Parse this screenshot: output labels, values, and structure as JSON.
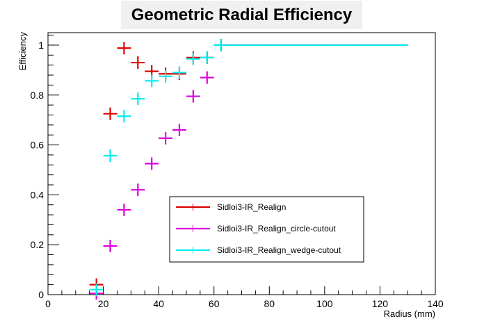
{
  "chart_data": {
    "type": "scatter",
    "title": "Geometric Radial Efficiency",
    "xlabel": "Radius (mm)",
    "ylabel": "Efficiency",
    "xlim": [
      0,
      140
    ],
    "ylim": [
      0,
      1.05
    ],
    "xticks": [
      0,
      20,
      40,
      60,
      80,
      100,
      120,
      140
    ],
    "yticks": [
      0,
      0.2,
      0.4,
      0.6,
      0.8,
      1
    ],
    "legend_position": "lower-center",
    "series": [
      {
        "name": "Sidloi3-IR_Realign",
        "color": "#dd0000",
        "points": [
          {
            "x": 17.5,
            "y": 0.04,
            "xerr": 2.5
          },
          {
            "x": 22.5,
            "y": 0.725,
            "xerr": 2.5
          },
          {
            "x": 27.5,
            "y": 0.988,
            "xerr": 2.5
          },
          {
            "x": 32.5,
            "y": 0.93,
            "xerr": 2.5
          },
          {
            "x": 37.5,
            "y": 0.895,
            "xerr": 2.5
          },
          {
            "x": 42.5,
            "y": 0.885,
            "xerr": 2.5
          },
          {
            "x": 47.5,
            "y": 0.885,
            "xerr": 2.5
          },
          {
            "x": 52.5,
            "y": 0.95,
            "xerr": 2.5
          },
          {
            "x": 57.5,
            "y": 0.95,
            "xerr": 2.5
          },
          {
            "x": 62.5,
            "y": 1.0,
            "xerr": 2.5
          },
          {
            "x": 72.5,
            "y": 1.0,
            "xerr": 7.5
          },
          {
            "x": 90,
            "y": 1.0,
            "xerr": 10
          },
          {
            "x": 105,
            "y": 1.0,
            "xerr": 5
          },
          {
            "x": 120,
            "y": 1.0,
            "xerr": 10
          }
        ]
      },
      {
        "name": "Sidloi3-IR_Realign_circle-cutout",
        "color": "#dd00dd",
        "points": [
          {
            "x": 17.5,
            "y": 0.005,
            "xerr": 2.5
          },
          {
            "x": 22.5,
            "y": 0.195,
            "xerr": 2.5
          },
          {
            "x": 27.5,
            "y": 0.34,
            "xerr": 2.5
          },
          {
            "x": 32.5,
            "y": 0.42,
            "xerr": 2.5
          },
          {
            "x": 37.5,
            "y": 0.525,
            "xerr": 2.5
          },
          {
            "x": 42.5,
            "y": 0.627,
            "xerr": 2.5
          },
          {
            "x": 47.5,
            "y": 0.66,
            "xerr": 2.5
          },
          {
            "x": 52.5,
            "y": 0.795,
            "xerr": 2.5
          },
          {
            "x": 57.5,
            "y": 0.87,
            "xerr": 2.5
          },
          {
            "x": 62.5,
            "y": 1.0,
            "xerr": 2.5
          },
          {
            "x": 72.5,
            "y": 1.0,
            "xerr": 7.5
          },
          {
            "x": 90,
            "y": 1.0,
            "xerr": 10
          },
          {
            "x": 105,
            "y": 1.0,
            "xerr": 5
          },
          {
            "x": 120,
            "y": 1.0,
            "xerr": 10
          }
        ]
      },
      {
        "name": "Sidloi3-IR_Realign_wedge-cutout",
        "color": "#00eeee",
        "points": [
          {
            "x": 17.5,
            "y": 0.02,
            "xerr": 2.5
          },
          {
            "x": 22.5,
            "y": 0.557,
            "xerr": 2.5
          },
          {
            "x": 27.5,
            "y": 0.715,
            "xerr": 2.5
          },
          {
            "x": 32.5,
            "y": 0.785,
            "xerr": 2.5
          },
          {
            "x": 37.5,
            "y": 0.857,
            "xerr": 2.5
          },
          {
            "x": 42.5,
            "y": 0.875,
            "xerr": 2.5
          },
          {
            "x": 47.5,
            "y": 0.89,
            "xerr": 2.5
          },
          {
            "x": 52.5,
            "y": 0.945,
            "xerr": 2.5
          },
          {
            "x": 57.5,
            "y": 0.95,
            "xerr": 2.5
          },
          {
            "x": 62.5,
            "y": 1.0,
            "xerr": 2.5
          },
          {
            "x": 72.5,
            "y": 1.0,
            "xerr": 7.5
          },
          {
            "x": 90,
            "y": 1.0,
            "xerr": 10
          },
          {
            "x": 105,
            "y": 1.0,
            "xerr": 5
          },
          {
            "x": 120,
            "y": 1.0,
            "xerr": 10
          }
        ]
      }
    ]
  }
}
